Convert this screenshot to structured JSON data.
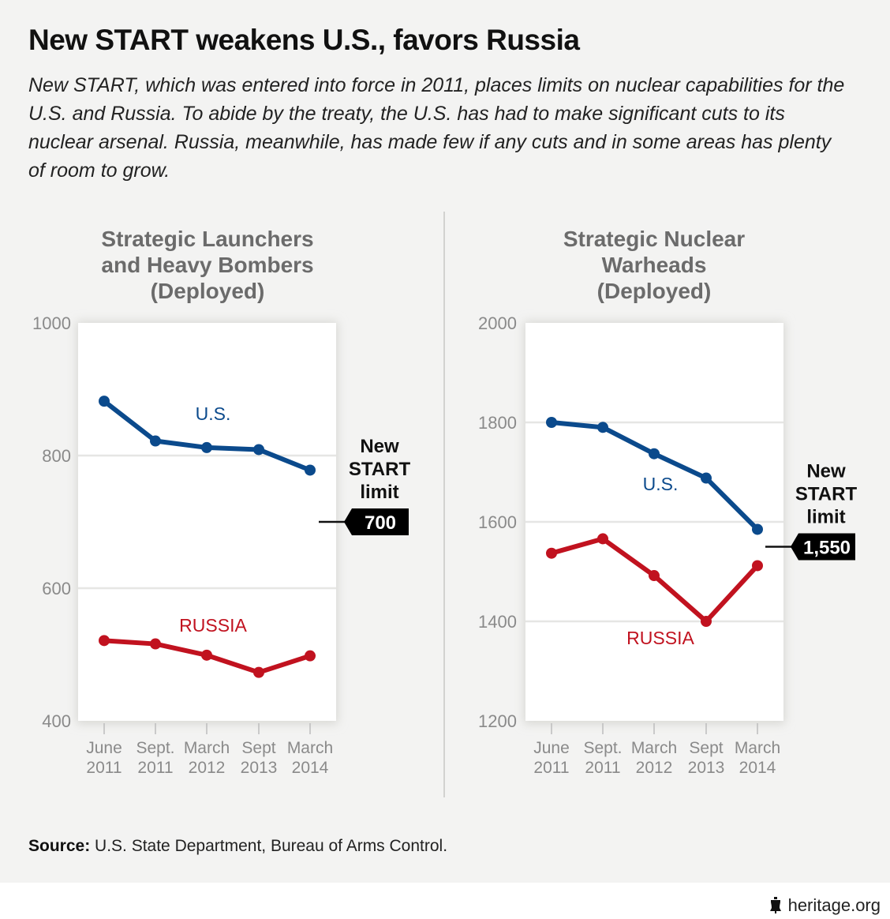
{
  "header": {
    "title": "New START weakens U.S., favors Russia",
    "subtitle": "New START, which was entered into force in 2011, places limits on nuclear capabilities for the U.S. and Russia. To abide by the treaty, the U.S. has had to make significant cuts to its nuclear arsenal. Russia, meanwhile, has made few if any cuts and in some areas has plenty of room to grow."
  },
  "colors": {
    "us": "#0b4a8c",
    "russia": "#c1121f",
    "grid": "#e6e6e4",
    "axis_text": "#8a8a8a",
    "limit_tag": "#000000"
  },
  "chart_data": [
    {
      "type": "line",
      "title": "Strategic Launchers and Heavy Bombers (Deployed)",
      "title_lines": [
        "Strategic Launchers",
        "and Heavy Bombers",
        "(Deployed)"
      ],
      "categories": [
        "June 2011",
        "Sept. 2011",
        "March 2012",
        "Sept 2013",
        "March 2014"
      ],
      "category_lines": [
        [
          "June",
          "2011"
        ],
        [
          "Sept.",
          "2011"
        ],
        [
          "March",
          "2012"
        ],
        [
          "Sept",
          "2013"
        ],
        [
          "March",
          "2014"
        ]
      ],
      "ylim": [
        400,
        1000
      ],
      "yticks": [
        400,
        600,
        800,
        1000
      ],
      "grid": true,
      "series": [
        {
          "name": "U.S.",
          "label": "U.S.",
          "values": [
            882,
            822,
            812,
            809,
            778
          ]
        },
        {
          "name": "Russia",
          "label": "RUSSIA",
          "values": [
            521,
            516,
            499,
            473,
            498
          ]
        }
      ],
      "annotation": {
        "label_lines": [
          "New",
          "START",
          "limit"
        ],
        "value": 700,
        "value_label": "700"
      }
    },
    {
      "type": "line",
      "title": "Strategic Nuclear Warheads (Deployed)",
      "title_lines": [
        "Strategic Nuclear",
        "Warheads",
        "(Deployed)"
      ],
      "categories": [
        "June 2011",
        "Sept. 2011",
        "March 2012",
        "Sept 2013",
        "March 2014"
      ],
      "category_lines": [
        [
          "June",
          "2011"
        ],
        [
          "Sept.",
          "2011"
        ],
        [
          "March",
          "2012"
        ],
        [
          "Sept",
          "2013"
        ],
        [
          "March",
          "2014"
        ]
      ],
      "ylim": [
        1200,
        2000
      ],
      "yticks": [
        1200,
        1400,
        1600,
        1800,
        2000
      ],
      "grid": true,
      "series": [
        {
          "name": "U.S.",
          "label": "U.S.",
          "values": [
            1800,
            1790,
            1737,
            1688,
            1585
          ]
        },
        {
          "name": "Russia",
          "label": "RUSSIA",
          "values": [
            1537,
            1566,
            1492,
            1400,
            1512
          ]
        }
      ],
      "annotation": {
        "label_lines": [
          "New",
          "START",
          "limit"
        ],
        "value": 1550,
        "value_label": "1,550"
      }
    }
  ],
  "footer": {
    "source_label": "Source:",
    "source_text": " U.S. State Department, Bureau of Arms Control.",
    "brand": "heritage.org",
    "brand_icon": "liberty-bell-icon"
  }
}
